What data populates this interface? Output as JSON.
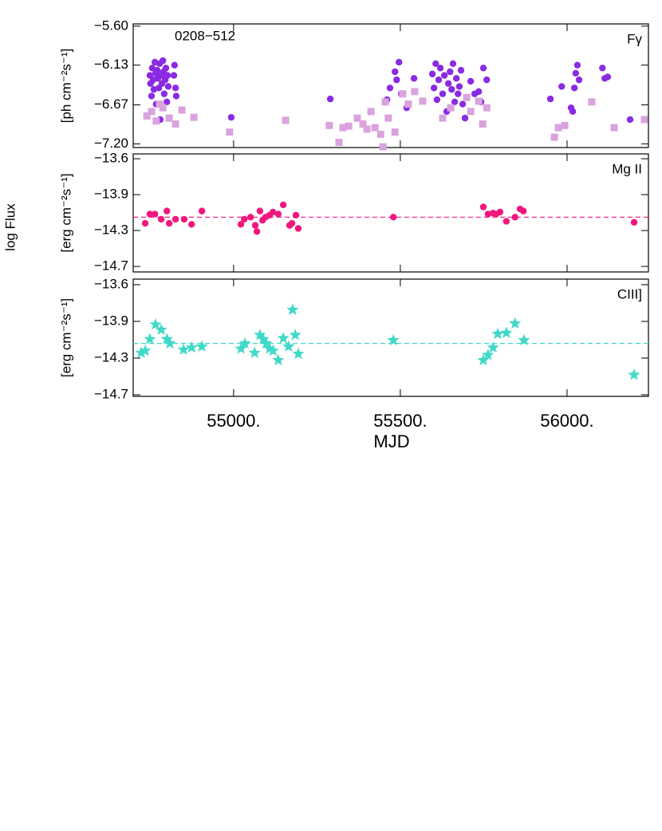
{
  "shared_ylabel": "log Flux",
  "chart_data": [
    {
      "type": "scatter",
      "label": "0208−512",
      "annotation": "Fγ",
      "ylabel": "[ph cm⁻²s⁻¹]",
      "ylim": [
        -7.25,
        -5.57
      ],
      "yticks": [
        {
          "value": -5.6,
          "label": "−5.60"
        },
        {
          "value": -6.13,
          "label": "−6.13"
        },
        {
          "value": -6.67,
          "label": "−6.67"
        },
        {
          "value": -7.2,
          "label": "−7.20"
        }
      ],
      "series": [
        {
          "color": "#8a2be2",
          "marker": "circle",
          "x": [
            54749,
            54751,
            54754,
            54756,
            54759,
            54761,
            54764,
            54766,
            54768,
            54771,
            54773,
            54776,
            54778,
            54780,
            54783,
            54785,
            54788,
            54790,
            54792,
            54795,
            54797,
            54800,
            54802,
            54804,
            54821,
            54823,
            54826,
            54828,
            54993,
            55290,
            55460,
            55469,
            55484,
            55489,
            55496,
            55503,
            55519,
            55541,
            55596,
            55601,
            55606,
            55610,
            55615,
            55620,
            55627,
            55632,
            55639,
            55644,
            55649,
            55654,
            55658,
            55663,
            55668,
            55673,
            55677,
            55682,
            55687,
            55694,
            55711,
            55723,
            55735,
            55742,
            55749,
            55759,
            55950,
            55984,
            56012,
            56017,
            56022,
            56026,
            56031,
            56036,
            56106,
            56113,
            56122,
            56189
          ],
          "values": [
            -6.27,
            -6.38,
            -6.55,
            -6.17,
            -6.33,
            -6.46,
            -6.09,
            -6.24,
            -6.66,
            -6.2,
            -6.31,
            -6.44,
            -6.11,
            -6.87,
            -6.27,
            -6.38,
            -6.07,
            -6.22,
            -6.52,
            -6.33,
            -6.17,
            -6.63,
            -6.27,
            -6.42,
            -6.27,
            -6.13,
            -6.44,
            -6.55,
            -6.84,
            -6.59,
            -6.6,
            -6.44,
            -6.22,
            -6.33,
            -6.09,
            -6.52,
            -6.71,
            -6.31,
            -6.25,
            -6.44,
            -6.11,
            -6.6,
            -6.33,
            -6.17,
            -6.52,
            -6.27,
            -6.76,
            -6.38,
            -6.22,
            -6.46,
            -6.11,
            -6.63,
            -6.31,
            -6.52,
            -6.42,
            -6.2,
            -6.66,
            -6.85,
            -6.35,
            -6.52,
            -6.49,
            -6.63,
            -6.17,
            -6.33,
            -6.59,
            -6.42,
            -6.71,
            -6.76,
            -6.44,
            -6.24,
            -6.13,
            -6.33,
            -6.17,
            -6.31,
            -6.29,
            -6.87
          ]
        },
        {
          "color": "#d9a3de",
          "marker": "square",
          "x": [
            54740,
            54754,
            54768,
            54778,
            54788,
            54807,
            54826,
            54845,
            54881,
            54988,
            55156,
            55287,
            55316,
            55328,
            55345,
            55371,
            55388,
            55400,
            55412,
            55424,
            55441,
            55448,
            55455,
            55464,
            55484,
            55507,
            55524,
            55543,
            55567,
            55627,
            55651,
            55699,
            55711,
            55735,
            55747,
            55759,
            55962,
            55974,
            55993,
            56074,
            56141,
            56232
          ],
          "values": [
            -6.82,
            -6.76,
            -6.89,
            -6.66,
            -6.71,
            -6.85,
            -6.93,
            -6.74,
            -6.84,
            -7.04,
            -6.88,
            -6.95,
            -7.18,
            -6.98,
            -6.96,
            -6.85,
            -6.93,
            -7.0,
            -6.76,
            -6.98,
            -7.07,
            -7.24,
            -6.63,
            -6.85,
            -7.04,
            -6.52,
            -6.66,
            -6.49,
            -6.62,
            -6.85,
            -6.71,
            -6.57,
            -6.76,
            -6.62,
            -6.93,
            -6.71,
            -7.11,
            -6.98,
            -6.95,
            -6.63,
            -6.98,
            -6.87
          ]
        }
      ]
    },
    {
      "type": "scatter",
      "annotation": "Mg II",
      "ylabel": "[erg cm⁻²s⁻¹]",
      "ylim": [
        -14.704,
        -13.553
      ],
      "yticks": [
        {
          "value": -13.6,
          "label": "−13.6"
        },
        {
          "value": -13.95,
          "label": "−13.9"
        },
        {
          "value": -14.3,
          "label": "−14.3"
        },
        {
          "value": -14.65,
          "label": "−14.7"
        }
      ],
      "mean": -14.17,
      "series": [
        {
          "color": "#f2167f",
          "marker": "circle",
          "x": [
            54735,
            54749,
            54764,
            54783,
            54800,
            54807,
            54826,
            54852,
            54874,
            54905,
            55022,
            55032,
            55051,
            55065,
            55070,
            55079,
            55087,
            55096,
            55108,
            55118,
            55134,
            55149,
            55168,
            55175,
            55187,
            55194,
            55479,
            55749,
            55763,
            55778,
            55787,
            55799,
            55818,
            55844,
            55859,
            55869,
            56201
          ],
          "values": [
            -14.23,
            -14.14,
            -14.14,
            -14.19,
            -14.11,
            -14.23,
            -14.19,
            -14.19,
            -14.24,
            -14.11,
            -14.24,
            -14.19,
            -14.17,
            -14.25,
            -14.31,
            -14.11,
            -14.2,
            -14.17,
            -14.15,
            -14.12,
            -14.14,
            -14.05,
            -14.25,
            -14.23,
            -14.15,
            -14.28,
            -14.17,
            -14.07,
            -14.14,
            -14.13,
            -14.14,
            -14.12,
            -14.21,
            -14.17,
            -14.09,
            -14.11,
            -14.22
          ]
        }
      ]
    },
    {
      "type": "scatter",
      "annotation": "CIII]",
      "ylabel": "[erg cm⁻²s⁻¹]",
      "xlabel": "MJD",
      "xlim": [
        54699,
        56244
      ],
      "xticks": [
        {
          "value": 55000,
          "label": "55000."
        },
        {
          "value": 55500,
          "label": "55500."
        },
        {
          "value": 56000,
          "label": "56000."
        }
      ],
      "ylim": [
        -14.665,
        -13.547
      ],
      "yticks": [
        {
          "value": -13.6,
          "label": "−13.6"
        },
        {
          "value": -13.95,
          "label": "−13.9"
        },
        {
          "value": -14.3,
          "label": "−14.3"
        },
        {
          "value": -14.65,
          "label": "−14.7"
        }
      ],
      "mean": -14.16,
      "series": [
        {
          "color": "#3fd9c8",
          "marker": "star",
          "x": [
            54723,
            54735,
            54749,
            54766,
            54783,
            54800,
            54809,
            54850,
            54874,
            54905,
            55022,
            55034,
            55063,
            55079,
            55089,
            55098,
            55108,
            55118,
            55134,
            55149,
            55165,
            55177,
            55185,
            55194,
            55479,
            55749,
            55763,
            55778,
            55792,
            55818,
            55844,
            55871,
            56201
          ],
          "values": [
            -14.25,
            -14.23,
            -14.12,
            -13.98,
            -14.03,
            -14.12,
            -14.16,
            -14.22,
            -14.2,
            -14.19,
            -14.21,
            -14.16,
            -14.25,
            -14.08,
            -14.12,
            -14.16,
            -14.21,
            -14.23,
            -14.32,
            -14.11,
            -14.19,
            -13.84,
            -14.08,
            -14.26,
            -14.13,
            -14.32,
            -14.27,
            -14.2,
            -14.07,
            -14.06,
            -13.97,
            -14.13,
            -14.46
          ]
        }
      ]
    }
  ]
}
